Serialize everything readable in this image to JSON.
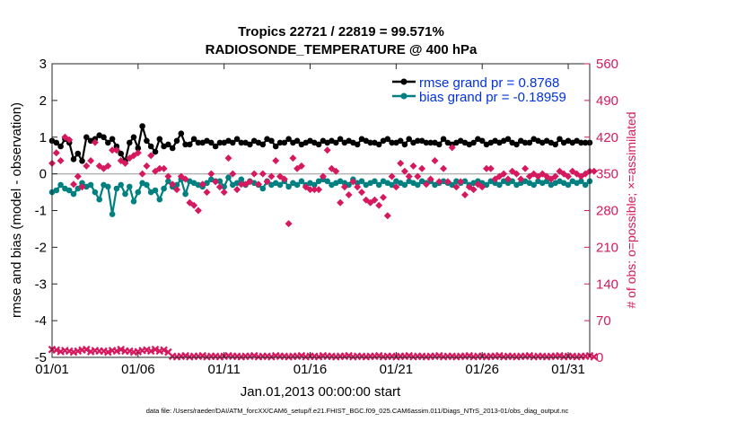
{
  "chart_data": {
    "type": "line",
    "title": "Tropics 22721 / 22819 = 99.571%",
    "subtitle": "RADIOSONDE_TEMPERATURE @ 400 hPa",
    "xlabel": "Jan.01,2013 00:00:00 start",
    "ylabel": "rmse and bias (model - observation)",
    "y2label": "# of obs: o=possible; ×=assimilated",
    "footnote": "data file: /Users/raeder/DAI/ATM_forcXX/CAM6_setup/f.e21.FHIST_BGC.f09_025.CAM6assim.011/Diags_NTrS_2013-01/obs_diag_output.nc",
    "xlim": [
      0,
      31.25
    ],
    "ylim": [
      -5,
      3
    ],
    "y2lim": [
      0,
      560
    ],
    "x_ticks": [
      0,
      5,
      10,
      15,
      20,
      25,
      30
    ],
    "x_tick_labels": [
      "01/01",
      "01/06",
      "01/11",
      "01/16",
      "01/21",
      "01/26",
      "01/31"
    ],
    "y_ticks": [
      -5,
      -4,
      -3,
      -2,
      -1,
      0,
      1,
      2,
      3
    ],
    "y_tick_labels": [
      "-5",
      "-4",
      "-3",
      "-2",
      "-1",
      "0",
      "1",
      "2",
      "3"
    ],
    "y2_ticks": [
      0,
      70,
      140,
      210,
      280,
      350,
      420,
      490,
      560
    ],
    "y2_tick_labels": [
      "0",
      "70",
      "140",
      "210",
      "280",
      "350",
      "420",
      "490",
      "560"
    ],
    "x_step": 0.25,
    "legend": {
      "position": "top-right",
      "entries": [
        "rmse grand pr = 0.8768",
        "bias grand pr = -0.18959"
      ]
    },
    "series": [
      {
        "name": "rmse",
        "color": "#000000",
        "marker": "asterisk",
        "axis": "left",
        "values": [
          0.9,
          0.85,
          0.75,
          0.95,
          0.85,
          0.4,
          0.55,
          0.35,
          1.0,
          0.9,
          0.95,
          1.05,
          1.0,
          0.85,
          0.95,
          0.75,
          0.55,
          0.35,
          0.85,
          1.0,
          0.7,
          1.3,
          0.9,
          0.75,
          0.6,
          0.95,
          0.75,
          0.8,
          0.7,
          0.9,
          1.1,
          0.8,
          0.8,
          0.95,
          0.85,
          0.85,
          0.9,
          0.85,
          0.75,
          0.85,
          0.85,
          0.9,
          0.85,
          0.95,
          0.85,
          0.85,
          0.8,
          0.9,
          0.85,
          0.8,
          0.95,
          0.9,
          0.75,
          0.85,
          0.85,
          0.95,
          0.85,
          0.9,
          0.8,
          0.85,
          0.9,
          0.85,
          0.8,
          0.9,
          0.85,
          0.9,
          0.85,
          0.95,
          0.85,
          0.9,
          0.85,
          0.8,
          0.95,
          0.9,
          0.85,
          0.85,
          0.8,
          0.9,
          0.95,
          0.85,
          0.85,
          0.9,
          0.8,
          0.95,
          0.85,
          0.9,
          0.9,
          0.85,
          0.85,
          0.85,
          0.8,
          0.95,
          0.85,
          0.8,
          0.85,
          0.9,
          0.85,
          0.8,
          0.85,
          0.95,
          0.9,
          0.8,
          0.85,
          0.9,
          0.85,
          0.9,
          0.95,
          0.85,
          0.8,
          0.9,
          0.85,
          0.85,
          0.95,
          0.9,
          0.85,
          0.9,
          0.85,
          0.8,
          0.95,
          0.85,
          0.9,
          0.85,
          0.9,
          0.85,
          0.85,
          0.85
        ]
      },
      {
        "name": "bias",
        "color": "#008080",
        "marker": "circle",
        "axis": "left",
        "values": [
          -0.5,
          -0.45,
          -0.3,
          -0.4,
          -0.45,
          -0.55,
          -0.4,
          -0.25,
          -0.35,
          -0.3,
          -0.5,
          -0.7,
          -0.3,
          -0.35,
          -1.1,
          -0.4,
          -0.3,
          -0.55,
          -0.35,
          -0.75,
          -0.5,
          -0.25,
          -0.3,
          -0.5,
          -0.45,
          -0.7,
          -0.4,
          -0.2,
          -0.35,
          -0.3,
          -0.15,
          -0.55,
          -0.2,
          -0.25,
          -0.3,
          -0.35,
          -0.25,
          -0.15,
          -0.2,
          -0.2,
          -0.35,
          -0.1,
          -0.3,
          -0.25,
          -0.15,
          -0.3,
          -0.2,
          -0.25,
          -0.3,
          -0.4,
          -0.2,
          -0.3,
          -0.25,
          -0.3,
          -0.2,
          -0.35,
          -0.25,
          -0.3,
          -0.2,
          -0.3,
          -0.25,
          -0.3,
          -0.2,
          -0.15,
          -0.2,
          -0.3,
          -0.25,
          -0.2,
          -0.25,
          -0.3,
          -0.15,
          -0.25,
          -0.2,
          -0.3,
          -0.25,
          -0.2,
          -0.3,
          -0.2,
          -0.25,
          -0.3,
          -0.2,
          -0.25,
          -0.3,
          -0.2,
          -0.25,
          -0.3,
          -0.2,
          -0.25,
          -0.2,
          -0.3,
          -0.25,
          -0.2,
          -0.25,
          -0.3,
          -0.2,
          -0.25,
          -0.2,
          -0.3,
          -0.25,
          -0.2,
          -0.25,
          -0.3,
          -0.2,
          -0.25,
          -0.3,
          -0.2,
          -0.25,
          -0.2,
          -0.3,
          -0.25,
          -0.2,
          -0.25,
          -0.3,
          -0.2,
          -0.25,
          -0.2,
          -0.3,
          -0.25,
          -0.2,
          -0.25,
          -0.3,
          -0.2,
          -0.25,
          -0.2,
          -0.3,
          -0.2
        ]
      },
      {
        "name": "# of obs possible",
        "color": "#d6195f",
        "marker": "o",
        "axis": "right",
        "values": [
          370,
          390,
          375,
          420,
          415,
          330,
          345,
          325,
          365,
          375,
          410,
          365,
          360,
          365,
          395,
          395,
          375,
          370,
          380,
          385,
          390,
          350,
          365,
          385,
          355,
          360,
          360,
          345,
          330,
          320,
          345,
          340,
          295,
          290,
          280,
          330,
          315,
          350,
          335,
          325,
          315,
          380,
          350,
          320,
          330,
          330,
          335,
          350,
          330,
          350,
          335,
          345,
          375,
          345,
          340,
          255,
          380,
          360,
          365,
          325,
          320,
          320,
          320,
          345,
          395,
          360,
          355,
          295,
          325,
          310,
          335,
          325,
          315,
          300,
          295,
          300,
          290,
          305,
          270,
          345,
          325,
          370,
          355,
          345,
          365,
          345,
          360,
          330,
          340,
          375,
          335,
          360,
          335,
          400,
          325,
          335,
          310,
          325,
          320,
          330,
          325,
          360,
          360,
          340,
          345,
          350,
          340,
          355,
          350,
          340,
          360,
          345,
          350,
          345,
          350,
          345,
          340,
          345,
          355,
          350,
          345,
          355,
          350,
          345,
          350,
          355,
          355
        ]
      },
      {
        "name": "# of obs assimilated",
        "color": "#d6195f",
        "marker": "x",
        "axis": "right",
        "values": [
          15,
          14,
          11,
          13,
          12,
          10,
          12,
          14,
          15,
          11,
          13,
          12,
          12,
          10,
          13,
          12,
          15,
          12,
          12,
          10,
          11,
          13,
          14,
          12,
          15,
          12,
          14,
          10,
          2,
          1,
          2,
          3,
          1,
          2,
          2,
          3,
          1,
          2,
          2,
          1,
          2,
          3,
          2,
          2,
          1,
          2,
          2,
          3,
          1,
          2,
          2,
          1,
          3,
          2,
          2,
          1,
          2,
          2,
          3,
          1,
          2,
          2,
          1,
          3,
          2,
          2,
          1,
          2,
          2,
          3,
          1,
          2,
          2,
          1,
          2,
          2,
          3,
          1,
          2,
          2,
          1,
          2,
          2,
          3,
          1,
          2,
          2,
          1,
          2,
          2,
          3,
          1,
          2,
          2,
          1,
          2,
          2,
          3,
          1,
          2,
          2,
          1,
          2,
          2,
          3,
          1,
          2,
          2,
          1,
          2,
          2,
          3,
          1,
          2,
          2,
          1,
          2,
          2,
          3,
          1,
          2,
          2,
          1,
          2,
          2,
          3,
          1
        ]
      }
    ]
  }
}
